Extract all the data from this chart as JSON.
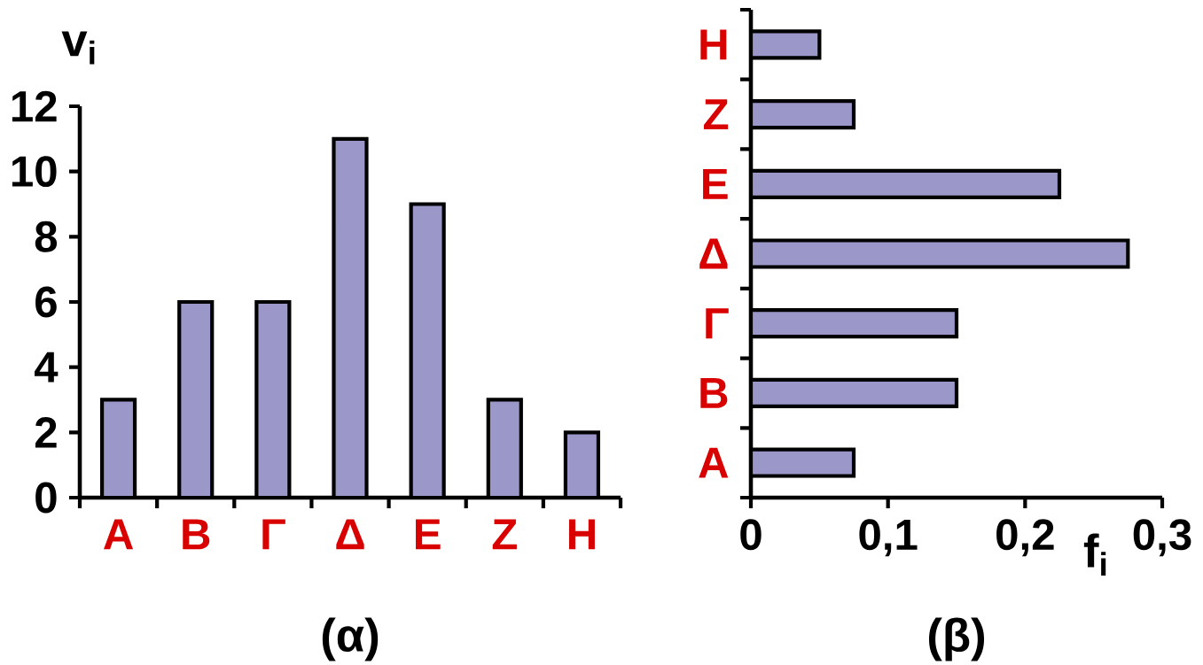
{
  "chart_data": [
    {
      "type": "bar",
      "title": "(α)",
      "ylabel": "v$_{i}$",
      "categories": [
        "Α",
        "Β",
        "Γ",
        "Δ",
        "Ε",
        "Ζ",
        "Η"
      ],
      "values": [
        3,
        6,
        6,
        11,
        9,
        3,
        2
      ],
      "color": "#9b98c9",
      "ylim": [
        0,
        12
      ],
      "yticks": [
        0,
        2,
        4,
        6,
        8,
        10,
        12
      ]
    },
    {
      "type": "bar",
      "orientation": "horizontal",
      "title": "(β)",
      "xlabel": "f$_{i}$",
      "categories": [
        "Η",
        "Ζ",
        "Ε",
        "Δ",
        "Γ",
        "Β",
        "Α"
      ],
      "values": [
        0.05,
        0.075,
        0.225,
        0.275,
        0.15,
        0.15,
        0.075
      ],
      "color": "#9b98c9",
      "xlim": [
        0,
        0.3
      ],
      "xticks": [
        0,
        {
          "value": 0.1,
          "label": "0,1"
        },
        {
          "value": 0.2,
          "label": "0,2"
        },
        {
          "value": 0.3,
          "label": "0,3"
        }
      ]
    }
  ]
}
